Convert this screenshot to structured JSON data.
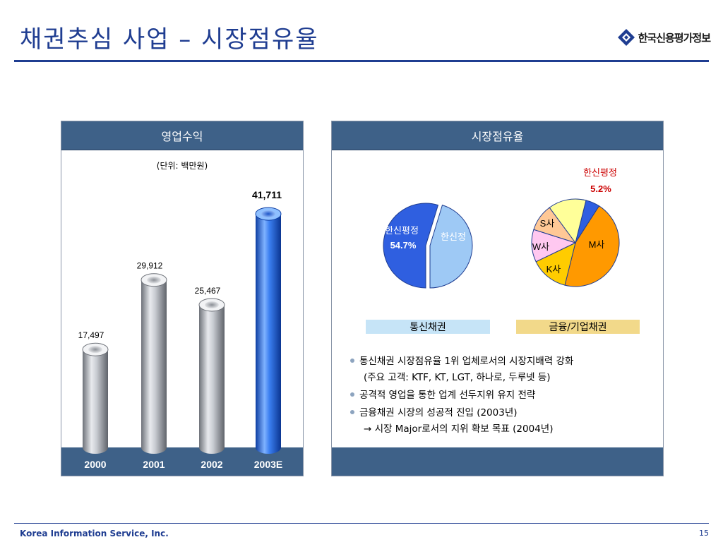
{
  "title": "채권추심 사업 – 시장점유율",
  "logo_text": "한국신용평가정보",
  "left_panel": {
    "header": "영업수익",
    "unit": "(단위: 백만원)"
  },
  "right_panel": {
    "header": "시장점유율"
  },
  "chart_data": [
    {
      "type": "bar",
      "title": "영업수익",
      "categories": [
        "2000",
        "2001",
        "2002",
        "2003E"
      ],
      "values": [
        17497,
        29912,
        25467,
        41711
      ],
      "value_labels": [
        "17,497",
        "29,912",
        "25,467",
        "41,711"
      ],
      "ylim": [
        0,
        45000
      ],
      "highlight_category": "2003E",
      "colors": {
        "normal": "#a9acb2",
        "highlight": "#1f63d6"
      }
    },
    {
      "type": "pie",
      "title": "통신채권",
      "slices": [
        {
          "label": "한신평정",
          "value": 54.7,
          "value_label": "54.7%",
          "color": "#2f5fe0"
        },
        {
          "label": "한신정",
          "value": 45.3,
          "color": "#9ec9f5"
        }
      ]
    },
    {
      "type": "pie",
      "title": "금융/기업채권",
      "slices": [
        {
          "label": "한신평정",
          "value": 5.2,
          "value_label": "5.2%",
          "color": "#2f5fe0"
        },
        {
          "label": "M사",
          "value": 44.8,
          "color": "#ff9900"
        },
        {
          "label": "K사",
          "value": 14,
          "color": "#ffcc00"
        },
        {
          "label": "W사",
          "value": 12,
          "color": "#ffc8f0"
        },
        {
          "label": "S사",
          "value": 10,
          "color": "#ffc896"
        },
        {
          "label": "",
          "value": 14,
          "color": "#ffff99"
        }
      ]
    }
  ],
  "legends": {
    "telecom": {
      "label": "통신채권",
      "color": "#c6e4f7"
    },
    "finance": {
      "label": "금융/기업채권",
      "color": "#f2d98a"
    }
  },
  "bullets": [
    "통신채권 시장점유율 1위 업체로서의 시장지배력 강화",
    "(주요 고객: KTF, KT, LGT, 하나로, 두루넷 등)",
    "공격적 영업을 통한 업계 선두지위 유지 전략",
    "금융채권 시장의 성공적 진입 (2003년)",
    "→ 시장 Major로서의 지위 확보 목표 (2004년)"
  ],
  "footer": {
    "company": "Korea Information Service, Inc.",
    "page": "15"
  }
}
